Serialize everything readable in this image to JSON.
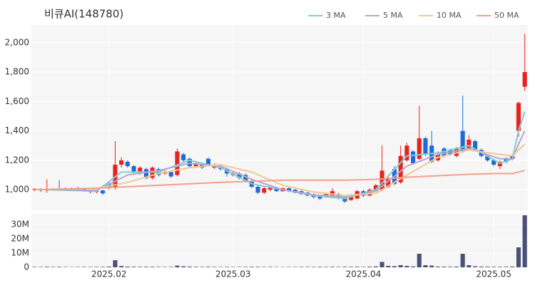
{
  "chart_data": {
    "type": "candlestick",
    "title": "비큐AI(148780)",
    "xlim": [
      -0.5,
      79.5
    ],
    "xticks": [
      {
        "value": 12,
        "label": "2025.02"
      },
      {
        "value": 32,
        "label": "2025.03"
      },
      {
        "value": 53,
        "label": "2025.04"
      },
      {
        "value": 74,
        "label": "2025.05"
      }
    ],
    "ylim": [
      860,
      2120
    ],
    "yticks": [
      {
        "value": 1000,
        "label": "1,000"
      },
      {
        "value": 1200,
        "label": "1,200"
      },
      {
        "value": 1400,
        "label": "1,400"
      },
      {
        "value": 1600,
        "label": "1,600"
      },
      {
        "value": 1800,
        "label": "1,800"
      },
      {
        "value": 2000,
        "label": "2,000"
      }
    ],
    "grid": true,
    "up_color": "#e8231f",
    "down_color": "#1f6ad9",
    "open": [
      1000,
      1005,
      995,
      1000,
      1005,
      1000,
      1010,
      1005,
      1005,
      995,
      985,
      995,
      1040,
      1020,
      1170,
      1190,
      1160,
      1120,
      1140,
      1080,
      1140,
      1110,
      1120,
      1100,
      1240,
      1210,
      1160,
      1170,
      1210,
      1150,
      1160,
      1140,
      1100,
      1110,
      1100,
      1060,
      1020,
      980,
      1000,
      1010,
      990,
      1010,
      1000,
      990,
      980,
      970,
      960,
      950,
      960,
      970,
      950,
      930,
      940,
      990,
      960,
      990,
      1000,
      1020,
      1140,
      1050,
      1200,
      1260,
      1210,
      1350,
      1300,
      1200,
      1280,
      1270,
      1230,
      1400,
      1280,
      1330,
      1270,
      1230,
      1200,
      1160,
      1210,
      1230,
      1400,
      1700
    ],
    "high": [
      1010,
      1010,
      1070,
      1010,
      1065,
      1015,
      1015,
      1020,
      1010,
      1000,
      1000,
      1000,
      1060,
      1330,
      1220,
      1200,
      1170,
      1160,
      1150,
      1160,
      1150,
      1130,
      1130,
      1280,
      1250,
      1220,
      1190,
      1180,
      1220,
      1180,
      1170,
      1150,
      1120,
      1120,
      1110,
      1070,
      1030,
      1020,
      1030,
      1020,
      1015,
      1015,
      1005,
      1000,
      985,
      975,
      965,
      980,
      1010,
      980,
      955,
      970,
      1000,
      1000,
      1010,
      1040,
      1300,
      1100,
      1160,
      1300,
      1320,
      1270,
      1570,
      1360,
      1400,
      1260,
      1290,
      1280,
      1290,
      1640,
      1370,
      1340,
      1280,
      1240,
      1210,
      1200,
      1220,
      1240,
      1600,
      2060
    ],
    "low": [
      990,
      985,
      980,
      995,
      995,
      995,
      1000,
      1000,
      985,
      975,
      975,
      965,
      1000,
      1000,
      1150,
      1150,
      1110,
      1100,
      1070,
      1070,
      1090,
      1100,
      1080,
      1090,
      1190,
      1150,
      1150,
      1140,
      1160,
      1140,
      1130,
      1090,
      1090,
      1070,
      1050,
      1010,
      970,
      970,
      990,
      985,
      985,
      985,
      975,
      965,
      955,
      940,
      930,
      945,
      950,
      935,
      910,
      925,
      935,
      950,
      955,
      985,
      990,
      1010,
      1030,
      1040,
      1190,
      1170,
      1200,
      1230,
      1180,
      1190,
      1220,
      1230,
      1220,
      1250,
      1270,
      1260,
      1220,
      1190,
      1160,
      1140,
      1180,
      1200,
      1360,
      1670
    ],
    "close": [
      1005,
      995,
      1000,
      1005,
      1000,
      1010,
      1005,
      1010,
      995,
      985,
      990,
      975,
      1010,
      1170,
      1200,
      1160,
      1120,
      1150,
      1080,
      1150,
      1100,
      1120,
      1090,
      1260,
      1200,
      1160,
      1180,
      1150,
      1170,
      1170,
      1140,
      1110,
      1110,
      1080,
      1060,
      1020,
      980,
      1010,
      1020,
      990,
      1010,
      990,
      980,
      970,
      960,
      950,
      940,
      970,
      990,
      940,
      920,
      960,
      990,
      960,
      1000,
      1030,
      1130,
      1080,
      1040,
      1230,
      1300,
      1180,
      1350,
      1240,
      1190,
      1240,
      1230,
      1240,
      1280,
      1260,
      1340,
      1270,
      1230,
      1200,
      1170,
      1190,
      1190,
      1210,
      1590,
      1800
    ],
    "series": [
      {
        "name": "3 MA",
        "color": "#7fcfcf",
        "x": [
          2,
          10,
          14,
          20,
          25,
          30,
          35,
          40,
          45,
          50,
          55,
          60,
          65,
          70,
          75,
          77,
          78,
          79
        ],
        "values": [
          1000,
          990,
          1120,
          1120,
          1200,
          1150,
          1040,
          1000,
          960,
          940,
          1000,
          1230,
          1250,
          1300,
          1180,
          1210,
          1400,
          1530
        ]
      },
      {
        "name": "5 MA",
        "color": "#b8a6d0",
        "x": [
          4,
          10,
          15,
          20,
          25,
          30,
          35,
          40,
          45,
          50,
          55,
          60,
          65,
          70,
          75,
          77,
          78,
          79
        ],
        "values": [
          1000,
          995,
          1100,
          1130,
          1180,
          1160,
          1070,
          1000,
          965,
          950,
          990,
          1160,
          1240,
          1280,
          1210,
          1210,
          1310,
          1400
        ]
      },
      {
        "name": "10 MA",
        "color": "#f2c98e",
        "x": [
          9,
          15,
          20,
          25,
          30,
          35,
          40,
          45,
          50,
          55,
          60,
          65,
          70,
          75,
          77,
          78,
          79
        ],
        "values": [
          1000,
          1050,
          1110,
          1150,
          1170,
          1120,
          1030,
          985,
          960,
          975,
          1100,
          1220,
          1270,
          1240,
          1230,
          1270,
          1310
        ]
      },
      {
        "name": "50 MA",
        "color": "#f2a08b",
        "x": [
          0,
          10,
          20,
          30,
          40,
          50,
          55,
          60,
          65,
          70,
          75,
          77,
          79
        ],
        "values": [
          1000,
          1010,
          1030,
          1050,
          1065,
          1065,
          1070,
          1085,
          1095,
          1105,
          1110,
          1110,
          1130
        ]
      }
    ],
    "volume": {
      "color": "#4b5078",
      "ylim": [
        0,
        37500000
      ],
      "yticks": [
        {
          "value": 0,
          "label": "0"
        },
        {
          "value": 10000000,
          "label": "10M"
        },
        {
          "value": 20000000,
          "label": "20M"
        },
        {
          "value": 30000000,
          "label": "30M"
        }
      ],
      "values": [
        300000,
        250000,
        400000,
        300000,
        350000,
        250000,
        200000,
        250000,
        300000,
        250000,
        300000,
        350000,
        500000,
        5000000,
        900000,
        500000,
        400000,
        350000,
        400000,
        400000,
        300000,
        250000,
        300000,
        1200000,
        700000,
        500000,
        350000,
        300000,
        400000,
        300000,
        250000,
        300000,
        250000,
        250000,
        300000,
        400000,
        350000,
        250000,
        300000,
        250000,
        200000,
        250000,
        250000,
        300000,
        300000,
        300000,
        350000,
        300000,
        400000,
        300000,
        400000,
        350000,
        400000,
        300000,
        450000,
        600000,
        3800000,
        1000000,
        800000,
        1500000,
        1000000,
        600000,
        9500000,
        1500000,
        1200000,
        500000,
        500000,
        400000,
        500000,
        9500000,
        1500000,
        700000,
        500000,
        450000,
        400000,
        350000,
        400000,
        500000,
        14000000,
        36500000
      ]
    }
  }
}
